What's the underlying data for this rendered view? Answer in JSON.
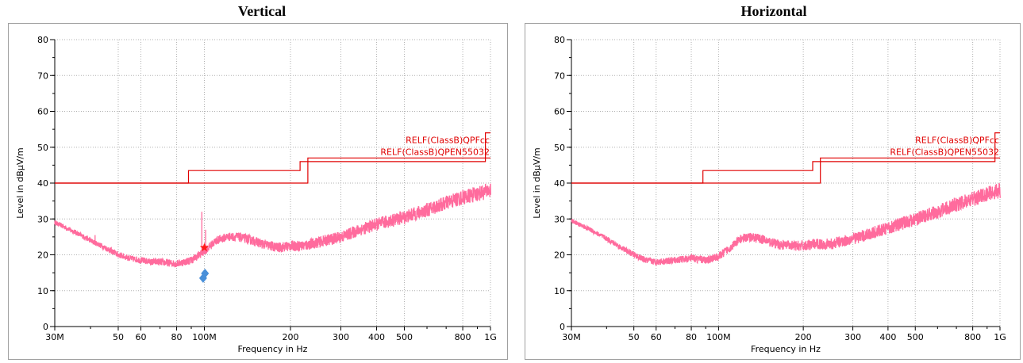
{
  "colors": {
    "trace": "#ff6b9d",
    "limit": "#e00000",
    "peak_marker": "#ff1a1a",
    "qp_marker": "#4a90d9",
    "grid": "#b0b0b0"
  },
  "chart_data": [
    {
      "type": "line",
      "title": "Vertical",
      "xlabel": "Frequency in Hz",
      "ylabel": "Level in dBµV/m",
      "xscale": "log",
      "xlim": [
        30000000,
        1000000000
      ],
      "ylim": [
        0,
        80
      ],
      "y_ticks": [
        "0",
        "10",
        "20",
        "30",
        "40",
        "50",
        "60",
        "70",
        "80"
      ],
      "x_ticks": [
        {
          "value": 30000000,
          "label": "30M"
        },
        {
          "value": 50000000,
          "label": "50"
        },
        {
          "value": 60000000,
          "label": "60"
        },
        {
          "value": 80000000,
          "label": "80"
        },
        {
          "value": 100000000,
          "label": "100M"
        },
        {
          "value": 200000000,
          "label": "200"
        },
        {
          "value": 300000000,
          "label": "300"
        },
        {
          "value": 400000000,
          "label": "400"
        },
        {
          "value": 500000000,
          "label": "500"
        },
        {
          "value": 800000000,
          "label": "800"
        },
        {
          "value": 1000000000,
          "label": "1G"
        }
      ],
      "grid": true,
      "limit_lines": [
        {
          "name": "RELF(ClassB)QPFcc",
          "x": [
            30000000,
            88000000,
            88000000,
            216000000,
            216000000,
            960000000,
            960000000,
            1000000000
          ],
          "y": [
            40,
            40,
            43.5,
            43.5,
            46,
            46,
            54,
            54
          ]
        },
        {
          "name": "RELF(ClassB)QPEN55032",
          "x": [
            30000000,
            230000000,
            230000000,
            1000000000
          ],
          "y": [
            40,
            40,
            47,
            47
          ]
        }
      ],
      "series": [
        {
          "x": [
            30000000,
            35000000,
            40000000,
            45000000,
            50000000,
            55000000,
            60000000,
            65000000,
            70000000,
            80000000,
            90000000,
            100000000,
            110000000,
            120000000,
            130000000,
            140000000,
            160000000,
            180000000,
            200000000,
            220000000,
            250000000,
            300000000,
            350000000,
            400000000,
            500000000,
            600000000,
            700000000,
            800000000,
            900000000,
            1000000000
          ],
          "values": [
            29,
            26.5,
            24,
            22,
            20,
            19,
            18.5,
            18,
            18,
            17.5,
            18.5,
            21,
            24,
            25,
            25,
            24.5,
            23,
            22,
            22.5,
            22.5,
            23.5,
            25,
            27,
            28.5,
            30.5,
            32.5,
            34.5,
            36,
            37,
            38
          ]
        }
      ],
      "peak_marker": {
        "x": 100000000,
        "y": 22
      },
      "qp_markers": [
        {
          "x": 99000000,
          "y": 13.5
        },
        {
          "x": 100500000,
          "y": 14.8
        }
      ]
    },
    {
      "type": "line",
      "title": "Horizontal",
      "xlabel": "Frequency in Hz",
      "ylabel": "Level in dBµV/m",
      "xscale": "log",
      "xlim": [
        30000000,
        1000000000
      ],
      "ylim": [
        0,
        80
      ],
      "y_ticks": [
        "0",
        "10",
        "20",
        "30",
        "40",
        "50",
        "60",
        "70",
        "80"
      ],
      "x_ticks": [
        {
          "value": 30000000,
          "label": "30M"
        },
        {
          "value": 50000000,
          "label": "50"
        },
        {
          "value": 60000000,
          "label": "60"
        },
        {
          "value": 80000000,
          "label": "80"
        },
        {
          "value": 100000000,
          "label": "100M"
        },
        {
          "value": 200000000,
          "label": "200"
        },
        {
          "value": 300000000,
          "label": "300"
        },
        {
          "value": 400000000,
          "label": "400"
        },
        {
          "value": 500000000,
          "label": "500"
        },
        {
          "value": 800000000,
          "label": "800"
        },
        {
          "value": 1000000000,
          "label": "1G"
        }
      ],
      "grid": true,
      "limit_lines": [
        {
          "name": "RELF(ClassB)QPFcc",
          "x": [
            30000000,
            88000000,
            88000000,
            216000000,
            216000000,
            960000000,
            960000000,
            1000000000
          ],
          "y": [
            40,
            40,
            43.5,
            43.5,
            46,
            46,
            54,
            54
          ]
        },
        {
          "name": "RELF(ClassB)QPEN55032",
          "x": [
            30000000,
            230000000,
            230000000,
            1000000000
          ],
          "y": [
            40,
            40,
            47,
            47
          ]
        }
      ],
      "series": [
        {
          "x": [
            30000000,
            35000000,
            40000000,
            45000000,
            50000000,
            55000000,
            60000000,
            70000000,
            80000000,
            90000000,
            100000000,
            110000000,
            120000000,
            130000000,
            140000000,
            160000000,
            180000000,
            200000000,
            220000000,
            250000000,
            300000000,
            350000000,
            400000000,
            500000000,
            600000000,
            700000000,
            800000000,
            900000000,
            1000000000
          ],
          "values": [
            29.5,
            27,
            24.5,
            22,
            20,
            18.5,
            18,
            18.5,
            19,
            18.5,
            19.5,
            22,
            24.5,
            25,
            24.5,
            23,
            22.5,
            22.5,
            23,
            23,
            24.5,
            26,
            27.5,
            30,
            32,
            34,
            35.5,
            37,
            38
          ]
        }
      ]
    }
  ]
}
